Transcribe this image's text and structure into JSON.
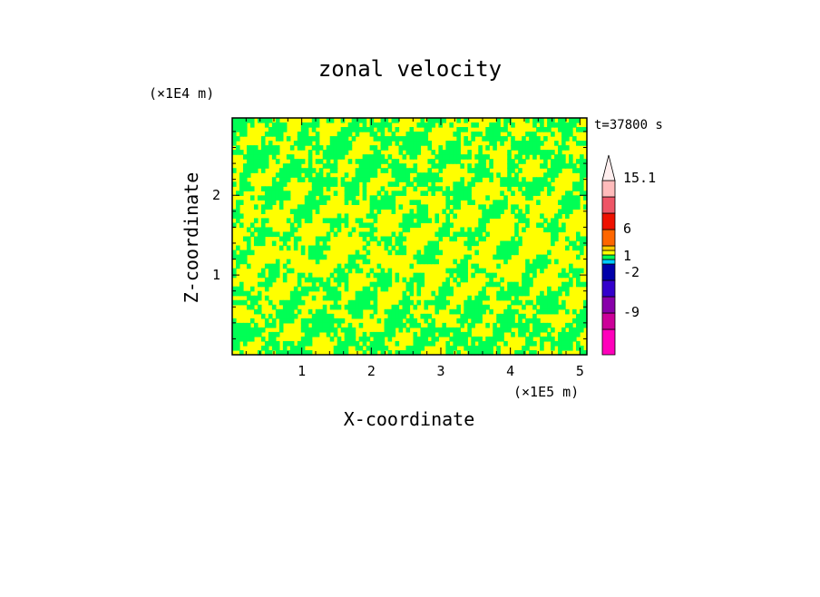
{
  "chart_data": {
    "type": "heatmap",
    "title": "zonal velocity",
    "xlabel": "X-coordinate",
    "ylabel": "Z-coordinate",
    "x_unit": "(×1E5 m)",
    "y_unit": "(×1E4 m)",
    "time_label": "t=37800 s",
    "xlim": [
      0.0,
      5.1
    ],
    "ylim": [
      0.0,
      2.97
    ],
    "x_ticks": [
      1,
      2,
      3,
      4,
      5
    ],
    "y_ticks": [
      1,
      2
    ],
    "field_note": "contoured zonal velocity dominated by the 1 to -2 range",
    "field_colors": [
      "#ffff00",
      "#00ff55"
    ],
    "colorbar": {
      "labels": [
        "15.1",
        "6",
        "1",
        "-2",
        "-9"
      ],
      "label_levels": [
        15.1,
        6,
        1,
        -2,
        -9
      ],
      "bands": [
        {
          "color": "#ff00bb"
        },
        {
          "color": "#cc0099"
        },
        {
          "color": "#8800aa"
        },
        {
          "color": "#3300cc"
        },
        {
          "color": "#0000aa"
        },
        {
          "color": "#00ccff"
        },
        {
          "color": "#00ff55"
        },
        {
          "color": "#ffff00"
        },
        {
          "color": "#ffcc00"
        },
        {
          "color": "#ff6600"
        },
        {
          "color": "#ee1100"
        },
        {
          "color": "#ee5566"
        },
        {
          "color": "#ffbbbb"
        }
      ]
    }
  }
}
